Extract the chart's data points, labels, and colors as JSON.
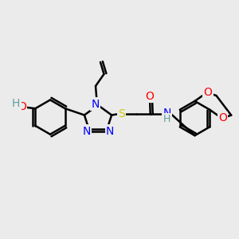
{
  "bg_color": "#ebebeb",
  "atom_colors": {
    "N": "#0000ff",
    "O": "#ff0000",
    "S": "#cccc00",
    "H_teal": "#5f9ea0",
    "C": "#000000"
  },
  "bond_color": "#000000",
  "bond_width": 1.8,
  "font_size_atom": 10
}
